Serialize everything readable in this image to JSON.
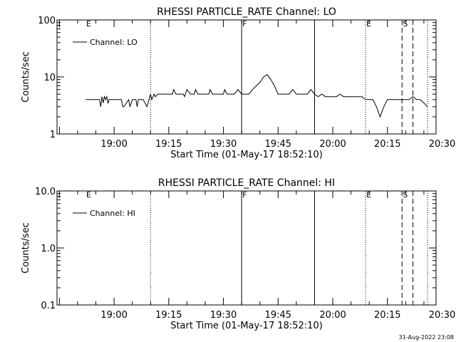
{
  "footer_timestamp": "31-Aug-2022 23:08",
  "chart_data": [
    {
      "type": "line",
      "title": "RHESSI PARTICLE_RATE Channel: LO",
      "xlabel": "Start Time (01-May-17 18:52:10)",
      "ylabel": "Counts/sec",
      "yscale": "log",
      "ylim": [
        1,
        100
      ],
      "yticks": [
        1,
        10,
        100
      ],
      "ytick_labels": [
        "1",
        "10",
        "100"
      ],
      "xlim_minutes_after_start": [
        -7.83,
        96.17
      ],
      "xticks": [
        "19:00",
        "19:15",
        "19:30",
        "19:45",
        "20:00",
        "20:15",
        "20:30"
      ],
      "legend": "Channel: LO",
      "legend_position": "top-left",
      "grid": false,
      "series": [
        {
          "name": "Channel: LO",
          "color": "#000000",
          "x_time": [
            "18:52:10",
            "18:54:00",
            "18:54:20",
            "18:54:40",
            "18:55:00",
            "18:56:00",
            "18:56:20",
            "18:56:40",
            "18:57:00",
            "18:57:20",
            "18:57:40",
            "18:58:00",
            "18:58:20",
            "18:58:40",
            "18:59:00",
            "19:00:00",
            "19:02:00",
            "19:02:20",
            "19:02:40",
            "19:04:00",
            "19:04:20",
            "19:05:00",
            "19:06:00",
            "19:06:20",
            "19:06:40",
            "19:08:00",
            "19:09:00",
            "19:10:00",
            "19:10:20",
            "19:11:00",
            "19:11:20",
            "19:12:00",
            "19:12:20",
            "19:13:00",
            "19:14:00",
            "19:15:00",
            "19:16:00",
            "19:16:20",
            "19:17:00",
            "19:18:00",
            "19:19:00",
            "19:19:20",
            "19:20:00",
            "19:21:00",
            "19:22:00",
            "19:22:20",
            "19:23:00",
            "19:24:00",
            "19:25:00",
            "19:26:00",
            "19:26:20",
            "19:27:00",
            "19:28:00",
            "19:29:00",
            "19:30:00",
            "19:30:20",
            "19:31:00",
            "19:32:00",
            "19:33:00",
            "19:34:00",
            "19:35:00",
            "19:36:00",
            "19:37:00",
            "19:38:00",
            "19:39:00",
            "19:40:00",
            "19:41:00",
            "19:42:00",
            "19:43:00",
            "19:44:00",
            "19:45:00",
            "19:46:00",
            "19:47:00",
            "19:48:00",
            "19:49:00",
            "19:50:00",
            "19:51:00",
            "19:52:00",
            "19:53:00",
            "19:54:00",
            "19:55:00",
            "19:56:00",
            "19:57:00",
            "19:58:00",
            "19:59:00",
            "20:00:00",
            "20:01:00",
            "20:02:00",
            "20:03:00",
            "20:04:00",
            "20:05:00",
            "20:06:00",
            "20:07:00",
            "20:08:00",
            "20:09:00",
            "20:10:00",
            "20:11:00",
            "20:12:00",
            "20:13:00",
            "20:14:00",
            "20:15:00",
            "20:16:00",
            "20:17:00",
            "20:18:00",
            "20:19:00",
            "20:20:00",
            "20:21:00",
            "20:22:00",
            "20:23:00",
            "20:24:00",
            "20:25:00",
            "20:26:00"
          ],
          "y": [
            4,
            4,
            4,
            4,
            4,
            4,
            3,
            4.5,
            3.5,
            4.5,
            4,
            4.5,
            3.5,
            4,
            4,
            4,
            4,
            3,
            3,
            4,
            3,
            4,
            4,
            3,
            4,
            4,
            3,
            5,
            4,
            5,
            4.5,
            5,
            5,
            5,
            5,
            5,
            5,
            6,
            5,
            5,
            5,
            4.5,
            6,
            5,
            5,
            6,
            5,
            5,
            5,
            5,
            6,
            5,
            5,
            5,
            5,
            6,
            5,
            5,
            5,
            6,
            5,
            5,
            5,
            6,
            7,
            8,
            10,
            11,
            9,
            7,
            5,
            5,
            5,
            5,
            6,
            5,
            5,
            5,
            5,
            6,
            5,
            4.5,
            5,
            4.5,
            4.5,
            4.5,
            4.5,
            5,
            4.5,
            4.5,
            4.5,
            4.5,
            4.5,
            4.5,
            4,
            4,
            4,
            3,
            2,
            3,
            4,
            4,
            4,
            4,
            4,
            4,
            4,
            4.5,
            4,
            4,
            3.5,
            3
          ]
        }
      ],
      "markers": [
        {
          "label": "E",
          "time": "18:52:10",
          "style": "none"
        },
        {
          "label": "",
          "time": "19:10:00",
          "style": "dotted"
        },
        {
          "label": "F",
          "time": "19:35:00",
          "style": "solid"
        },
        {
          "label": "",
          "time": "19:55:00",
          "style": "solid"
        },
        {
          "label": "E",
          "time": "20:09:00",
          "style": "dotted"
        },
        {
          "label": "S",
          "time": "20:19:00",
          "style": "dashed"
        },
        {
          "label": "",
          "time": "20:22:00",
          "style": "dashed"
        },
        {
          "label": "",
          "time": "20:26:00",
          "style": "dotted"
        }
      ]
    },
    {
      "type": "line",
      "title": "RHESSI PARTICLE_RATE Channel: HI",
      "xlabel": "Start Time (01-May-17 18:52:10)",
      "ylabel": "Counts/sec",
      "yscale": "log",
      "ylim": [
        0.1,
        10
      ],
      "yticks": [
        0.1,
        1,
        10
      ],
      "ytick_labels": [
        "0.1",
        "1.0",
        "10.0"
      ],
      "xlim_minutes_after_start": [
        -7.83,
        96.17
      ],
      "xticks": [
        "19:00",
        "19:15",
        "19:30",
        "19:45",
        "20:00",
        "20:15",
        "20:30"
      ],
      "legend": "Channel: HI",
      "legend_position": "top-left",
      "grid": false,
      "series": [
        {
          "name": "Channel: HI",
          "color": "#000000",
          "x_time": [],
          "y": []
        }
      ],
      "markers": [
        {
          "label": "E",
          "time": "18:52:10",
          "style": "none"
        },
        {
          "label": "",
          "time": "19:10:00",
          "style": "dotted"
        },
        {
          "label": "F",
          "time": "19:35:00",
          "style": "solid"
        },
        {
          "label": "",
          "time": "19:55:00",
          "style": "solid"
        },
        {
          "label": "E",
          "time": "20:09:00",
          "style": "dotted"
        },
        {
          "label": "S",
          "time": "20:19:00",
          "style": "dashed"
        },
        {
          "label": "",
          "time": "20:22:00",
          "style": "dashed"
        },
        {
          "label": "",
          "time": "20:26:00",
          "style": "dotted"
        }
      ]
    }
  ]
}
